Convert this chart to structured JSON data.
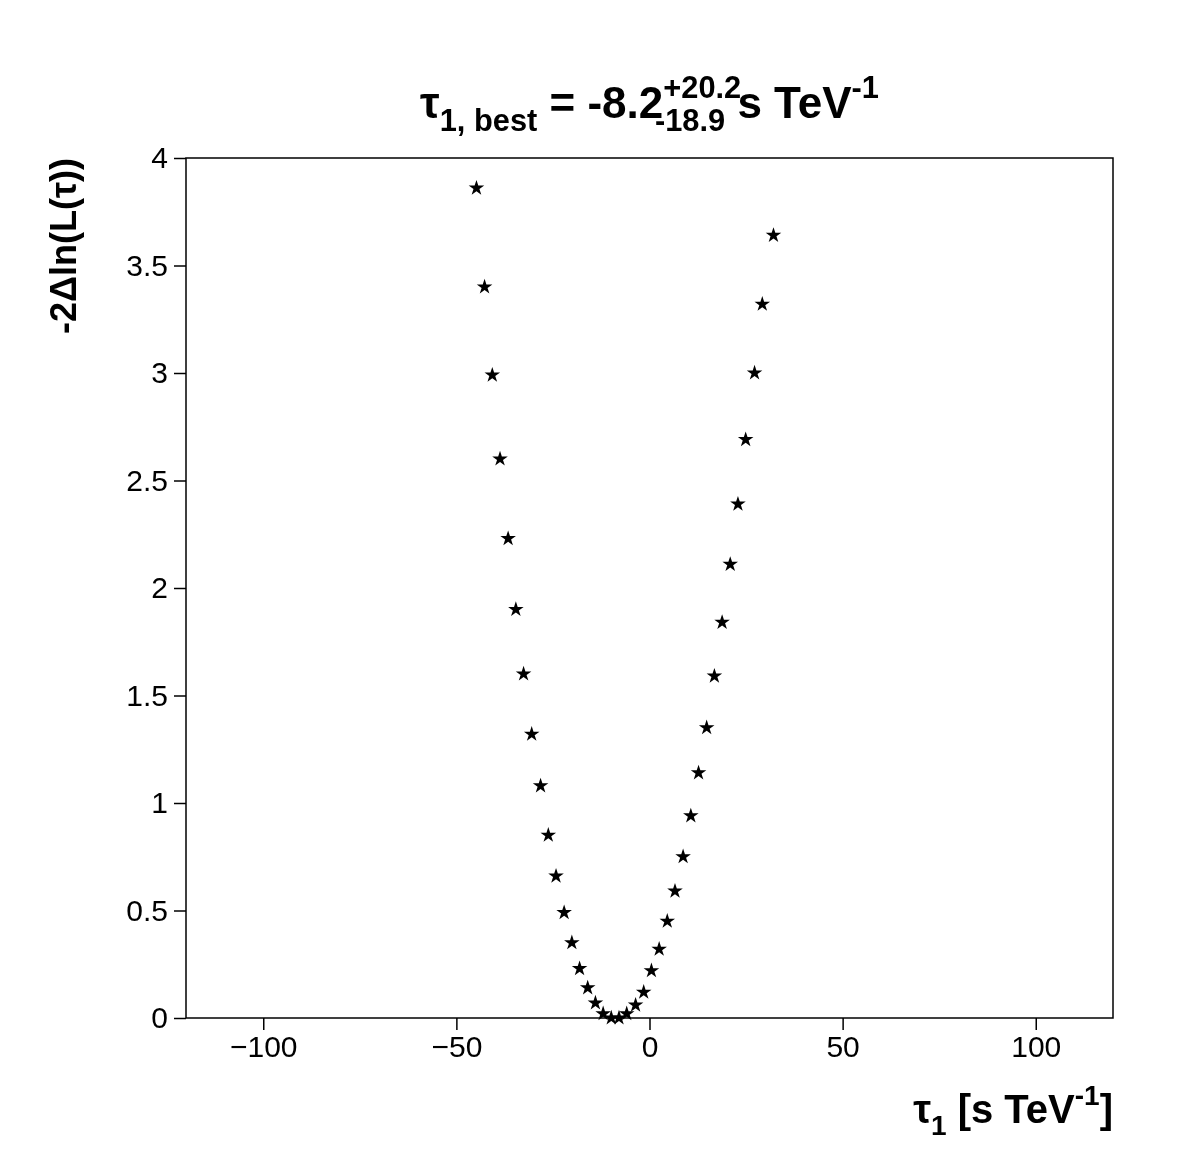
{
  "chart_data": {
    "type": "scatter",
    "title": "τ$_{1, best}$ = -8.2$^{+20.2}$$_{-18.9}$ s TeV$^{-1}$",
    "xlabel": "τ$_{1}$ [s TeV$^{-1}$]",
    "ylabel": "-2Δln(L(τ))",
    "marker": "star",
    "grid": false,
    "xlim": [
      -120,
      120
    ],
    "ylim": [
      0,
      4
    ],
    "xticks": [
      {
        "value": -100,
        "label": "−100"
      },
      {
        "value": -50,
        "label": "−50"
      },
      0,
      50,
      100
    ],
    "yticks": [
      0,
      0.5,
      1,
      1.5,
      2,
      2.5,
      3,
      3.5,
      4
    ],
    "series": [
      {
        "color": "#000000",
        "x": [
          -44.8,
          -42.7,
          -40.7,
          -38.7,
          -36.6,
          -34.6,
          -32.6,
          -30.5,
          -28.2,
          -26.2,
          -24.2,
          -22.1,
          -20.1,
          -18.1,
          -16.0,
          -14.0,
          -12.0,
          -9.9,
          -7.9,
          -5.9,
          -3.6,
          -1.5,
          0.5,
          2.5,
          4.6,
          6.6,
          8.7,
          10.7,
          12.7,
          14.8,
          16.8,
          18.8,
          20.9,
          22.9,
          24.9,
          27.2,
          29.2,
          32.1
        ],
        "values": [
          3.86,
          3.4,
          2.99,
          2.6,
          2.23,
          1.9,
          1.6,
          1.32,
          1.08,
          0.85,
          0.66,
          0.49,
          0.35,
          0.23,
          0.14,
          0.07,
          0.02,
          0.0,
          0.0,
          0.02,
          0.06,
          0.12,
          0.22,
          0.32,
          0.45,
          0.59,
          0.75,
          0.94,
          1.14,
          1.35,
          1.59,
          1.84,
          2.11,
          2.39,
          2.69,
          3.0,
          3.32,
          3.64
        ]
      }
    ]
  }
}
